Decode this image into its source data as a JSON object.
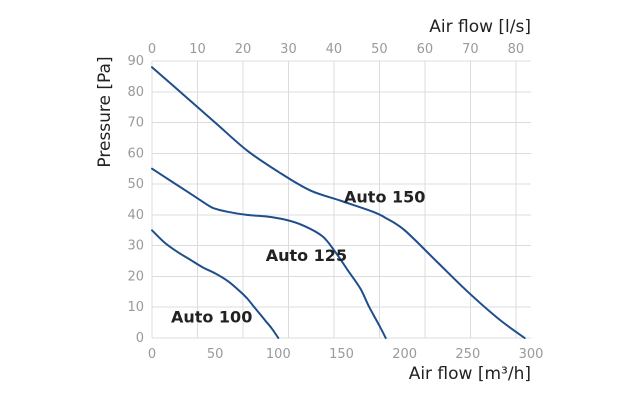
{
  "chart_data": {
    "type": "line",
    "title": "",
    "xlabel": "Air flow [m³/h]",
    "x2label": "Air flow [l/s]",
    "ylabel": "Pressure [Pa]",
    "xlim": [
      0,
      300
    ],
    "x2lim": [
      0,
      83.33
    ],
    "ylim": [
      0,
      90
    ],
    "xticks": [
      0,
      50,
      100,
      150,
      200,
      250,
      300
    ],
    "x2ticks": [
      0,
      10,
      20,
      30,
      40,
      50,
      60,
      70,
      80
    ],
    "yticks": [
      0,
      10,
      20,
      30,
      40,
      50,
      60,
      70,
      80,
      90
    ],
    "grid": true,
    "legend": "labels placed next to curves",
    "line_color": "#1f4e8c",
    "series": [
      {
        "name": "Auto 100",
        "x": [
          0,
          10,
          20,
          30,
          40,
          50,
          60,
          70,
          75,
          80,
          85,
          90,
          95,
          100
        ],
        "y": [
          35,
          31,
          28,
          25.5,
          23,
          21,
          18.5,
          15,
          13,
          10.5,
          8,
          5.5,
          3,
          0
        ]
      },
      {
        "name": "Auto 125",
        "x": [
          0,
          15,
          30,
          45,
          50,
          60,
          75,
          90,
          105,
          120,
          135,
          145,
          155,
          165,
          172,
          180,
          185
        ],
        "y": [
          55,
          51,
          47,
          43,
          42,
          41,
          40,
          39.5,
          38.5,
          36.5,
          33,
          28,
          22,
          16,
          10,
          4,
          0
        ]
      },
      {
        "name": "Auto 150",
        "x": [
          0,
          25,
          50,
          75,
          100,
          125,
          150,
          175,
          185,
          200,
          225,
          250,
          275,
          295
        ],
        "y": [
          88,
          79,
          70,
          61,
          54,
          48,
          44.5,
          41,
          39,
          35,
          25,
          15,
          6,
          0
        ]
      }
    ]
  }
}
